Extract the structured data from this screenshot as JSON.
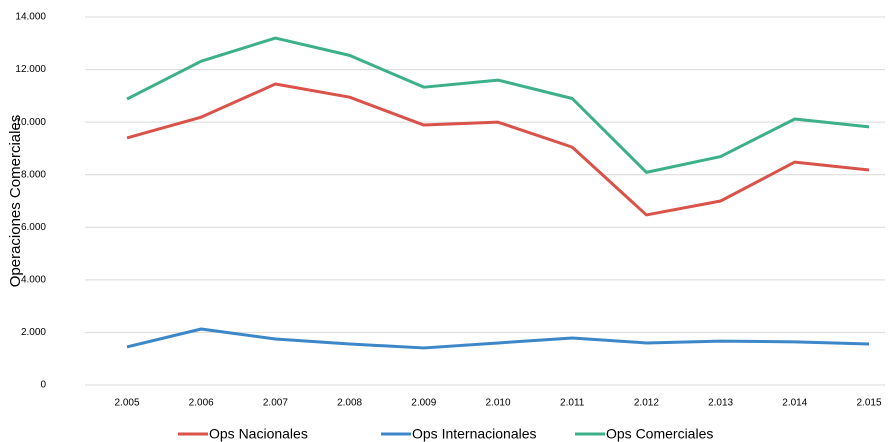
{
  "chart_data": {
    "type": "line",
    "y_label": "Operaciones Comerciales",
    "categories": [
      "2.005",
      "2.006",
      "2.007",
      "2.008",
      "2.009",
      "2.010",
      "2.011",
      "2.012",
      "2.013",
      "2.014",
      "2.015"
    ],
    "series": [
      {
        "name": "Ops Nacionales",
        "color": "#d9534a",
        "values": [
          9400,
          10190,
          11450,
          10950,
          9890,
          10000,
          9050,
          6470,
          7000,
          8480,
          8180
        ]
      },
      {
        "name": "Ops Internacionales",
        "color": "#3c87c8",
        "values": [
          1450,
          2130,
          1750,
          1560,
          1410,
          1600,
          1790,
          1600,
          1670,
          1640,
          1560
        ]
      },
      {
        "name": "Ops Comerciales",
        "color": "#3cb089",
        "values": [
          10880,
          12320,
          13200,
          12540,
          11330,
          11600,
          10900,
          8090,
          8690,
          10120,
          9820
        ]
      }
    ],
    "ylim": [
      0,
      14000
    ],
    "yticks": [
      0,
      {
        "value": 2000,
        "label": "2.000"
      },
      {
        "value": 4000,
        "label": "4.000"
      },
      {
        "value": 6000,
        "label": "6.000"
      },
      {
        "value": 8000,
        "label": "8.000"
      },
      {
        "value": 10000,
        "label": "10.000"
      },
      {
        "value": 12000,
        "label": "12.000"
      },
      {
        "value": 14000,
        "label": "14.000"
      }
    ],
    "grid": true
  }
}
